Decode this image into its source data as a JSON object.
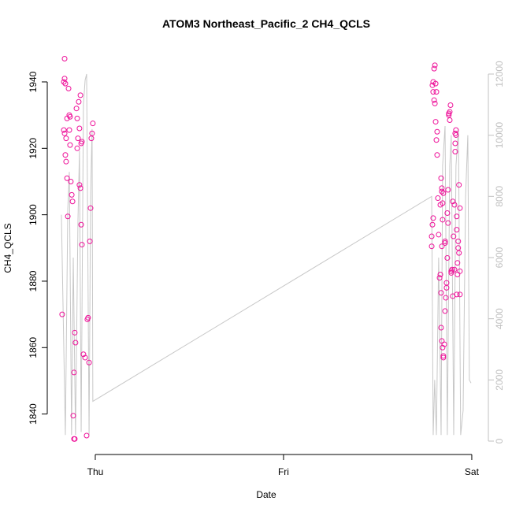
{
  "chart_data": {
    "type": "scatter",
    "title": "ATOM3 Northeast_Pacific_2 CH4_QCLS",
    "x_label": "Date",
    "y_label": "CH4_QCLS",
    "xlim": [
      -0.23,
      2.063
    ],
    "xticks": [
      {
        "value": 0,
        "label": "Thu"
      },
      {
        "value": 1,
        "label": "Fri"
      },
      {
        "value": 2,
        "label": "Sat"
      }
    ],
    "ylim": [
      1829,
      1951
    ],
    "yticks": [
      1840,
      1860,
      1880,
      1900,
      1920,
      1940
    ],
    "y2lim": [
      -309,
      12937
    ],
    "y2ticks": [
      0,
      2000,
      4000,
      6000,
      8000,
      10000,
      12000
    ],
    "y2_color": "#c0c0c0",
    "grid": false,
    "series": [
      {
        "type": "scatter",
        "color": "#ee1199",
        "x": [
          -0.176,
          -0.163,
          -0.163,
          -0.159,
          -0.167,
          -0.167,
          -0.163,
          -0.155,
          -0.15,
          -0.159,
          -0.155,
          -0.15,
          -0.146,
          -0.142,
          -0.138,
          -0.134,
          -0.138,
          -0.134,
          -0.13,
          -0.125,
          -0.121,
          -0.117,
          -0.113,
          -0.109,
          -0.113,
          -0.109,
          -0.105,
          -0.1,
          -0.096,
          -0.092,
          -0.096,
          -0.088,
          -0.084,
          -0.084,
          -0.079,
          -0.075,
          -0.071,
          -0.063,
          -0.054,
          -0.046,
          -0.042,
          -0.038,
          -0.033,
          -0.029,
          -0.025,
          -0.021,
          -0.017,
          -0.013,
          -0.075,
          -0.079,
          -0.071,
          1.787,
          1.787,
          1.791,
          1.795,
          1.791,
          1.795,
          1.8,
          1.804,
          1.795,
          1.808,
          1.812,
          1.8,
          1.804,
          1.808,
          1.816,
          1.812,
          1.816,
          1.82,
          1.824,
          1.829,
          1.833,
          1.837,
          1.833,
          1.841,
          1.841,
          1.845,
          1.845,
          1.849,
          1.837,
          1.841,
          1.837,
          1.841,
          1.845,
          1.849,
          1.849,
          1.854,
          1.858,
          1.858,
          1.858,
          1.862,
          1.866,
          1.866,
          1.87,
          1.87,
          1.874,
          1.874,
          1.878,
          1.878,
          1.883,
          1.883,
          1.887,
          1.891,
          1.891,
          1.895,
          1.899,
          1.899,
          1.903,
          1.908,
          1.908,
          1.912,
          1.912,
          1.912,
          1.916,
          1.916,
          1.92,
          1.92,
          1.92,
          1.924,
          1.924,
          1.928,
          1.928,
          1.932,
          1.932,
          1.937,
          1.937,
          1.937
        ],
        "values": [
          1870,
          1947,
          1941,
          1939.5,
          1940,
          1925.5,
          1924.5,
          1923,
          1929,
          1918,
          1916,
          1911,
          1899.5,
          1938,
          1930,
          1929.5,
          1925.5,
          1921,
          1910,
          1906,
          1904,
          1839.5,
          1832.5,
          1832.5,
          1852.5,
          1864.5,
          1861.5,
          1932,
          1929,
          1923,
          1920,
          1934,
          1926,
          1909,
          1908,
          1897,
          1891,
          1858,
          1857,
          1833.5,
          1868.5,
          1869,
          1855.5,
          1892,
          1902,
          1923,
          1924.5,
          1927.5,
          1921.5,
          1936,
          1922,
          1890.5,
          1893.5,
          1897,
          1899,
          1939,
          1940,
          1944,
          1945,
          1937,
          1939.5,
          1937,
          1934.5,
          1933.5,
          1928,
          1925,
          1922.5,
          1918,
          1905,
          1894,
          1881,
          1882,
          1911,
          1903,
          1907,
          1908,
          1903.5,
          1898.5,
          1906.5,
          1876.5,
          1890.5,
          1866,
          1862,
          1860,
          1857,
          1857.5,
          1861,
          1871,
          1891.5,
          1892,
          1875,
          1878,
          1879.5,
          1887,
          1900.5,
          1907.5,
          1897.5,
          1930,
          1930.5,
          1931,
          1928.5,
          1933,
          1882.5,
          1883,
          1883.5,
          1904,
          1875.5,
          1893.5,
          1903,
          1883.5,
          1919,
          1921.5,
          1924.5,
          1925.5,
          1924,
          1899.5,
          1895.5,
          1876,
          1885.5,
          1882,
          1890,
          1892,
          1888.5,
          1909,
          1902,
          1876,
          1883
        ]
      },
      {
        "type": "line",
        "axis": "y2",
        "color": "#c8c8c8",
        "x": [
          -0.18,
          -0.159,
          -0.146,
          -0.138,
          -0.126,
          -0.117,
          -0.105,
          -0.092,
          -0.084,
          -0.075,
          -0.063,
          -0.054,
          -0.046,
          -0.033,
          -0.025,
          -0.017,
          -0.013,
          1.787,
          1.795,
          1.803,
          1.812,
          1.824,
          1.837,
          1.845,
          1.858,
          1.87,
          1.883,
          1.891,
          1.904,
          1.916,
          1.929,
          1.941,
          1.954,
          1.967,
          1.979,
          1.987,
          1.996
        ],
        "values": [
          7400,
          200,
          7600,
          8800,
          200,
          6000,
          200,
          7200,
          9500,
          300,
          11000,
          11800,
          12000,
          200,
          8000,
          10200,
          1300,
          8000,
          200,
          2000,
          200,
          6000,
          200,
          9000,
          10300,
          200,
          9000,
          10000,
          200,
          9000,
          10200,
          200,
          1000,
          8000,
          10000,
          2000,
          1900
        ]
      }
    ]
  }
}
